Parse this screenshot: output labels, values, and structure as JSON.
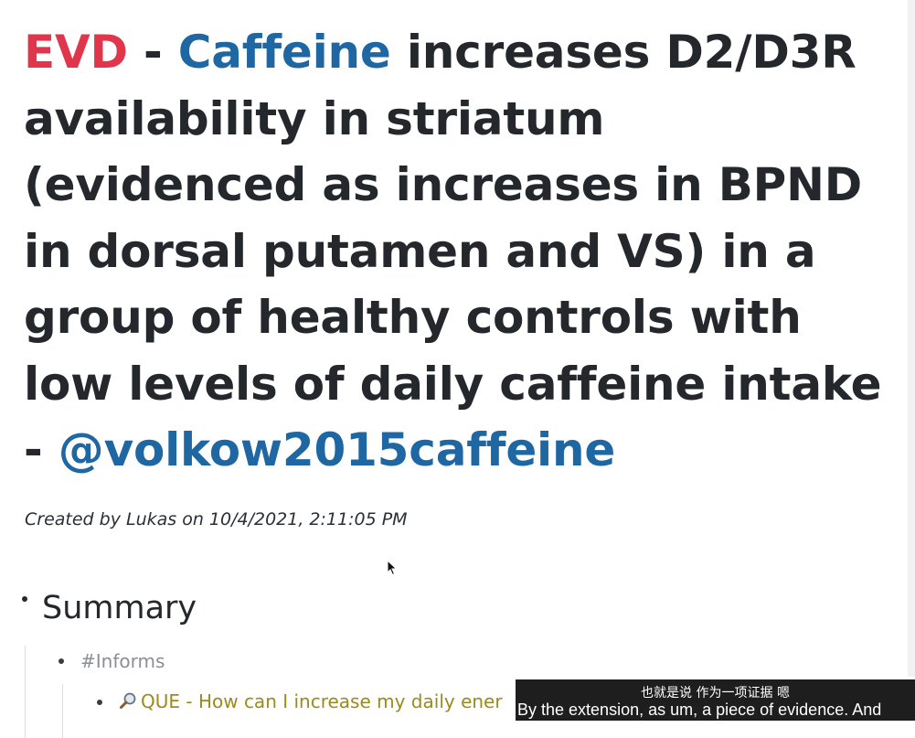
{
  "note": {
    "title": {
      "tag_evd": "EVD",
      "separator": " - ",
      "tag_caffeine": "Caffeine",
      "claim": " increases D2/D3R availability in striatum (evidenced as increases in BPND in dorsal putamen and VS) in a group of healthy controls with low levels of daily caffeine intake - ",
      "citation": "@volkow2015caffeine"
    },
    "created_by": "Created by Lukas on 10/4/2021, 2:11:05 PM"
  },
  "outline": {
    "summary_heading": "Summary",
    "informs_tag": "#Informs",
    "question_item": {
      "icon": "magnifier-icon",
      "text": "QUE - How can I increase my daily ener"
    }
  },
  "subtitles": {
    "chinese": "也就是说 作为一项证据 嗯",
    "english": "By the extension, as um, a piece of evidence. And"
  },
  "colors": {
    "evd_red": "#e0364b",
    "link_blue": "#1f67a3",
    "question_olive": "#9b8a1c",
    "tag_gray": "#8a8f96"
  }
}
